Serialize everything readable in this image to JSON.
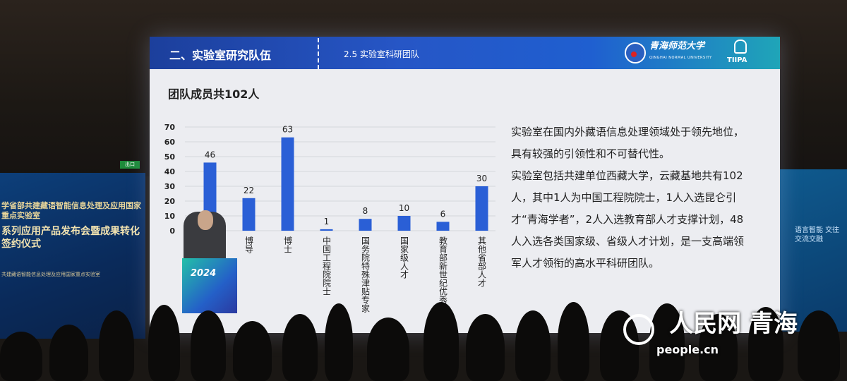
{
  "slide": {
    "section": "二、实验室研究队伍",
    "subsection": "2.5  实验室科研团队",
    "university_logo_text": "青海师范大学",
    "university_en": "QINGHAI NORMAL UNIVERSITY",
    "org_logo": "TIIPA",
    "heading": "团队成员共102人",
    "paragraphs": [
      "实验室在国内外藏语信息处理领域处于领先地位，具有较强的引领性和不可替代性。",
      "实验室包括共建单位西藏大学，云藏基地共有102人，其中1人为中国工程院院士，1人入选昆仑引才“青海学者”，2人入选教育部人才支撑计划，48人入选各类国家级、省级人才计划，是一支高端领军人才领衔的高水平科研团队。"
    ]
  },
  "chart_data": {
    "type": "bar",
    "categories": [
      "",
      "博导",
      "博士",
      "中国工程院院士",
      "国务院特殊津贴专家",
      "国家级人才",
      "教育部新世纪优秀人才",
      "其他省部人才"
    ],
    "values": [
      46,
      22,
      63,
      1,
      8,
      10,
      6,
      30
    ],
    "yticks": [
      0,
      10,
      20,
      30,
      40,
      50,
      60,
      70
    ],
    "ylim": [
      0,
      70
    ],
    "grid": true,
    "bar_color": "#2a5fd6"
  },
  "venue": {
    "banner_left_line1": "学省部共建藏语智能信息处理及应用国家重点实验室",
    "banner_left_line2": "系列应用产品发布会暨成果转化签约仪式",
    "banner_left_small": "共建藏语智能信息处理及应用国家重点实验室",
    "banner_right": "语言智能  交往交流交融",
    "podium_text": "2024",
    "exit_sign": "出口"
  },
  "watermark": {
    "name": "人民网 青海",
    "site": "people.cn"
  }
}
